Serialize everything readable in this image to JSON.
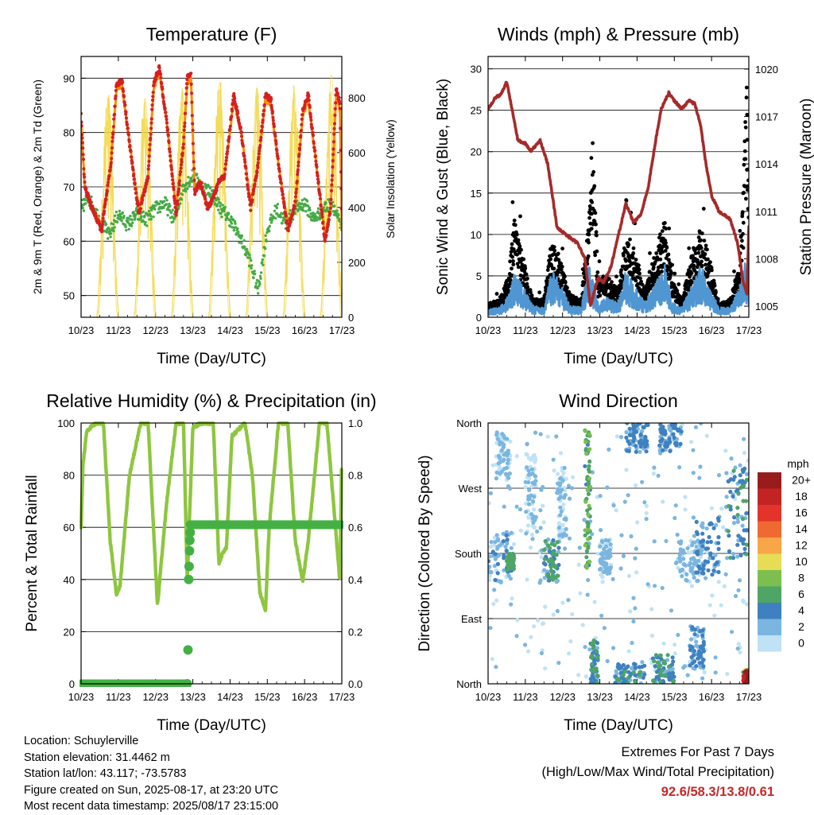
{
  "colors": {
    "temp2m": "#d42020",
    "temp9m": "#ff8c00",
    "dewpoint": "#44aa44",
    "solar": "#f2d740",
    "wind": "#4f96d2",
    "gust": "#000000",
    "pressure": "#a52a2a",
    "rh": "#8ec63f",
    "precip": "#44b044",
    "grid": "#000000"
  },
  "chart_data": [
    {
      "id": "temperature",
      "type": "line",
      "title": "Temperature (F)",
      "xlabel": "Time (Day/UTC)",
      "ylabel": "2m & 9m T (Red, Orange) & 2m Td (Green)",
      "y2label": "Solar Insolation (Yellow)",
      "xticks": [
        "10/23",
        "11/23",
        "12/23",
        "13/23",
        "14/23",
        "15/23",
        "16/23",
        "17/23"
      ],
      "xlim": [
        0,
        7
      ],
      "ylim": [
        46,
        94
      ],
      "yticks": [
        50,
        60,
        70,
        80,
        90
      ],
      "y2lim": [
        0,
        950
      ],
      "y2ticks": [
        0,
        200,
        400,
        600,
        800
      ],
      "grid": true,
      "series": [
        {
          "name": "2m T",
          "axis": "left",
          "x": [
            0,
            0.1,
            0.3,
            0.55,
            0.8,
            0.95,
            1.1,
            1.3,
            1.55,
            1.8,
            1.95,
            2.1,
            2.3,
            2.55,
            2.75,
            2.85,
            2.95,
            3.05,
            3.2,
            3.4,
            3.55,
            3.7,
            3.85,
            4.1,
            4.3,
            4.55,
            4.75,
            4.95,
            5.1,
            5.3,
            5.55,
            5.75,
            5.95,
            6.1,
            6.3,
            6.55,
            6.7,
            6.85,
            6.95,
            7
          ],
          "y": [
            83,
            70,
            66,
            62,
            74,
            89,
            89.5,
            78,
            65,
            72,
            89,
            92,
            82,
            65,
            78,
            90,
            91,
            69,
            71,
            66,
            68,
            71,
            72,
            87,
            80,
            66,
            74,
            87,
            86,
            74,
            62,
            67,
            84,
            87,
            75,
            60,
            66,
            88,
            85,
            62
          ]
        },
        {
          "name": "9m T",
          "axis": "left",
          "x": [
            0,
            0.1,
            0.3,
            0.55,
            0.8,
            0.95,
            1.1,
            1.3,
            1.55,
            1.8,
            1.95,
            2.1,
            2.3,
            2.55,
            2.75,
            2.85,
            2.95,
            3.05,
            3.2,
            3.4,
            3.55,
            3.7,
            3.85,
            4.1,
            4.3,
            4.55,
            4.75,
            4.95,
            5.1,
            5.3,
            5.55,
            5.75,
            5.95,
            6.1,
            6.3,
            6.55,
            6.7,
            6.85,
            6.95,
            7
          ],
          "y": [
            82,
            70,
            66,
            63,
            74,
            88,
            88.5,
            78,
            66,
            72,
            88,
            91,
            82,
            66,
            78,
            89,
            90,
            69,
            71,
            66,
            68,
            71,
            72,
            86,
            80,
            67,
            74,
            86,
            85,
            74,
            63,
            67,
            83,
            86,
            75,
            61,
            66,
            87,
            84,
            62
          ]
        },
        {
          "name": "2m Td",
          "axis": "left",
          "x": [
            0,
            0.2,
            0.5,
            0.75,
            1.0,
            1.25,
            1.5,
            1.75,
            2.0,
            2.25,
            2.5,
            2.75,
            3.0,
            3.25,
            3.5,
            3.75,
            4.0,
            4.25,
            4.5,
            4.75,
            5.0,
            5.25,
            5.5,
            5.75,
            6.0,
            6.25,
            6.5,
            6.75,
            7
          ],
          "y": [
            66,
            68,
            64,
            61,
            65,
            63,
            65,
            64,
            66,
            67,
            64,
            70,
            72,
            70,
            69,
            66,
            64,
            61,
            57,
            51,
            62,
            66,
            63,
            66,
            67,
            64,
            66,
            67,
            62
          ]
        },
        {
          "name": "Solar Insolation",
          "axis": "right",
          "peaks": [
            0.72,
            1.72,
            2.72,
            3.72,
            4.72,
            5.72,
            6.72
          ],
          "peak_values": [
            820,
            840,
            870,
            900,
            880,
            860,
            930
          ]
        }
      ]
    },
    {
      "id": "winds",
      "type": "line",
      "title": "Winds (mph) & Pressure (mb)",
      "xlabel": "Time (Day/UTC)",
      "ylabel": "Sonic Wind & Gust (Blue, Black)",
      "y2label": "Station Pressure (Maroon)",
      "xticks": [
        "10/23",
        "11/23",
        "12/23",
        "13/23",
        "14/23",
        "15/23",
        "16/23",
        "17/23"
      ],
      "xlim": [
        0,
        7
      ],
      "ylim": [
        0,
        31.5
      ],
      "yticks": [
        0,
        5,
        10,
        15,
        20,
        25,
        30
      ],
      "y2lim": [
        1004.3,
        1020.8
      ],
      "y2ticks": [
        1005,
        1008,
        1011,
        1014,
        1017,
        1020
      ],
      "grid": true,
      "series": [
        {
          "name": "Pressure",
          "axis": "right",
          "x": [
            0,
            0.2,
            0.35,
            0.5,
            0.6,
            0.8,
            1.0,
            1.15,
            1.4,
            1.6,
            1.85,
            2.1,
            2.4,
            2.6,
            2.75,
            2.95,
            3.1,
            3.3,
            3.5,
            3.7,
            3.9,
            4.1,
            4.3,
            4.5,
            4.65,
            4.85,
            5.0,
            5.2,
            5.4,
            5.55,
            5.7,
            5.85,
            6.0,
            6.2,
            6.5,
            6.7,
            6.85,
            6.95,
            7
          ],
          "y": [
            1017.5,
            1018.2,
            1018.4,
            1019.2,
            1018,
            1015.5,
            1015.3,
            1014.8,
            1015.5,
            1014,
            1010,
            1009.5,
            1009,
            1008,
            1005,
            1006.8,
            1006.5,
            1007.5,
            1009.5,
            1011.5,
            1010.3,
            1010.8,
            1012.5,
            1015.5,
            1017.5,
            1018.5,
            1018,
            1017.5,
            1018,
            1017.8,
            1016.5,
            1014,
            1012,
            1011,
            1010.5,
            1009,
            1006.5,
            1005.8,
            1010
          ]
        },
        {
          "name": "Sonic Wind",
          "axis": "left",
          "x": [
            0,
            0.3,
            0.55,
            0.7,
            0.9,
            1.2,
            1.5,
            1.7,
            1.9,
            2.2,
            2.5,
            2.7,
            2.95,
            3.2,
            3.5,
            3.7,
            3.95,
            4.2,
            4.5,
            4.75,
            4.95,
            5.2,
            5.5,
            5.7,
            5.95,
            6.2,
            6.5,
            6.75,
            6.9,
            7
          ],
          "y": [
            0.8,
            1.0,
            2.2,
            4.5,
            3.5,
            1.2,
            1.0,
            4.8,
            3.8,
            1.2,
            1.0,
            5.5,
            1.5,
            2.0,
            1.5,
            4.8,
            3.0,
            1.5,
            3.5,
            5.5,
            1.5,
            1.0,
            3.5,
            5.5,
            3.0,
            1.0,
            1.0,
            3.0,
            6.0,
            4.0
          ]
        },
        {
          "name": "Gust",
          "axis": "left",
          "x": [
            0,
            0.3,
            0.55,
            0.7,
            0.9,
            1.2,
            1.5,
            1.7,
            1.9,
            2.2,
            2.5,
            2.7,
            2.8,
            2.95,
            3.2,
            3.5,
            3.7,
            3.95,
            4.2,
            4.5,
            4.75,
            4.95,
            5.2,
            5.5,
            5.7,
            5.95,
            6.2,
            6.5,
            6.75,
            6.85,
            6.95,
            7
          ],
          "y": [
            1.5,
            2.0,
            4.5,
            11.0,
            7.5,
            2.0,
            2.0,
            8.5,
            7.0,
            2.5,
            2.0,
            10.5,
            21.5,
            4.5,
            4.5,
            3.0,
            9.5,
            7.5,
            3.0,
            7.5,
            11.0,
            4.0,
            2.0,
            7.5,
            10.0,
            6.5,
            1.5,
            2.0,
            6.0,
            14.0,
            29.0,
            12.0
          ]
        }
      ]
    },
    {
      "id": "humidity",
      "type": "line",
      "title": "Relative Humidity (%) & Precipitation (in)",
      "xlabel": "Time (Day/UTC)",
      "ylabel": "Percent & Total Rainfall",
      "xticks": [
        "10/23",
        "11/23",
        "12/23",
        "13/23",
        "14/23",
        "15/23",
        "16/23",
        "17/23"
      ],
      "xlim": [
        0,
        7
      ],
      "ylim": [
        0,
        100
      ],
      "yticks": [
        0,
        20,
        40,
        60,
        80,
        100
      ],
      "y2lim": [
        0,
        1.0
      ],
      "y2ticks": [
        0.0,
        0.2,
        0.4,
        0.6,
        0.8,
        1.0
      ],
      "grid": true,
      "series": [
        {
          "name": "RH",
          "axis": "left",
          "x": [
            0,
            0.05,
            0.15,
            0.4,
            0.6,
            0.78,
            0.95,
            1.05,
            1.3,
            1.6,
            1.8,
            1.95,
            2.05,
            2.3,
            2.55,
            2.75,
            2.85,
            3.0,
            3.2,
            3.55,
            3.7,
            3.8,
            3.9,
            4.05,
            4.4,
            4.6,
            4.8,
            4.95,
            5.05,
            5.3,
            5.55,
            5.75,
            5.95,
            6.1,
            6.4,
            6.6,
            6.8,
            6.95,
            7
          ],
          "y": [
            60,
            84,
            97,
            100,
            100,
            55,
            34,
            38,
            80,
            100,
            100,
            58,
            30,
            70,
            100,
            100,
            40,
            98,
            100,
            100,
            46,
            50,
            52,
            95,
            100,
            80,
            35,
            28,
            60,
            100,
            100,
            55,
            39,
            55,
            100,
            100,
            65,
            39,
            90
          ]
        },
        {
          "name": "Precipitation",
          "axis": "right",
          "x": [
            0,
            2.85,
            2.87,
            2.89,
            2.9,
            2.91,
            2.92,
            2.93,
            3.0,
            7
          ],
          "y": [
            0,
            0,
            0.13,
            0.4,
            0.45,
            0.51,
            0.55,
            0.58,
            0.61,
            0.61
          ]
        }
      ]
    },
    {
      "id": "wind_direction",
      "type": "scatter",
      "title": "Wind Direction",
      "xlabel": "Time (Day/UTC)",
      "ylabel": "Direction (Colored By Speed)",
      "xticks": [
        "10/23",
        "11/23",
        "12/23",
        "13/23",
        "14/23",
        "15/23",
        "16/23",
        "17/23"
      ],
      "xlim": [
        0,
        7
      ],
      "ylim": [
        0,
        360
      ],
      "yticks": [
        0,
        90,
        180,
        270,
        360
      ],
      "yticklabels": [
        "North",
        "East",
        "South",
        "West",
        "North"
      ],
      "grid": true,
      "legend": {
        "title": "mph",
        "labels": [
          "20+",
          "18",
          "16",
          "14",
          "12",
          "10",
          "8",
          "6",
          "4",
          "2",
          "0"
        ],
        "colors": [
          "#991c1c",
          "#c42323",
          "#e2342a",
          "#ef6a30",
          "#f7a648",
          "#e6dc55",
          "#7cbf4f",
          "#4ea565",
          "#3f80c0",
          "#7bb6e0",
          "#bfe2f6"
        ],
        "position": "right"
      },
      "clusters": [
        {
          "x": [
            0.0,
            0.7
          ],
          "dir": [
            140,
            210
          ],
          "speed": [
            0,
            4
          ]
        },
        {
          "x": [
            0.2,
            0.6
          ],
          "dir": [
            280,
            350
          ],
          "speed": [
            0,
            2
          ]
        },
        {
          "x": [
            0.5,
            0.7
          ],
          "dir": [
            155,
            180
          ],
          "speed": [
            4,
            6
          ]
        },
        {
          "x": [
            1.0,
            1.3
          ],
          "dir": [
            200,
            320
          ],
          "speed": [
            0,
            2
          ]
        },
        {
          "x": [
            1.5,
            1.9
          ],
          "dir": [
            140,
            200
          ],
          "speed": [
            2,
            6
          ]
        },
        {
          "x": [
            1.85,
            2.1
          ],
          "dir": [
            200,
            300
          ],
          "speed": [
            0,
            2
          ]
        },
        {
          "x": [
            2.6,
            2.75
          ],
          "dir": [
            160,
            350
          ],
          "speed": [
            4,
            8
          ]
        },
        {
          "x": [
            2.75,
            2.95
          ],
          "dir": [
            0,
            60
          ],
          "speed": [
            2,
            6
          ]
        },
        {
          "x": [
            3.0,
            3.3
          ],
          "dir": [
            150,
            200
          ],
          "speed": [
            0,
            3
          ]
        },
        {
          "x": [
            3.4,
            4.2
          ],
          "dir": [
            0,
            30
          ],
          "speed": [
            2,
            6
          ]
        },
        {
          "x": [
            3.7,
            4.3
          ],
          "dir": [
            320,
            360
          ],
          "speed": [
            2,
            5
          ]
        },
        {
          "x": [
            4.4,
            5.0
          ],
          "dir": [
            0,
            40
          ],
          "speed": [
            2,
            6
          ]
        },
        {
          "x": [
            4.6,
            5.2
          ],
          "dir": [
            320,
            360
          ],
          "speed": [
            2,
            5
          ]
        },
        {
          "x": [
            5.0,
            5.8
          ],
          "dir": [
            140,
            200
          ],
          "speed": [
            0,
            3
          ]
        },
        {
          "x": [
            5.4,
            5.8
          ],
          "dir": [
            20,
            80
          ],
          "speed": [
            2,
            4
          ]
        },
        {
          "x": [
            5.5,
            6.2
          ],
          "dir": [
            150,
            230
          ],
          "speed": [
            2,
            5
          ]
        },
        {
          "x": [
            6.4,
            6.95
          ],
          "dir": [
            170,
            300
          ],
          "speed": [
            2,
            6
          ]
        },
        {
          "x": [
            6.85,
            7.0
          ],
          "dir": [
            0,
            20
          ],
          "speed": [
            6,
            20
          ]
        }
      ]
    }
  ],
  "info": {
    "location": "Location: Schuylerville",
    "elevation": "Station elevation: 31.4462 m",
    "latlon": "Station lat/lon: 43.117; -73.5783",
    "created": "Figure created on Sun, 2025-08-17, at 23:20 UTC",
    "recent": "Most recent data timestamp: 2025/08/17 23:15:00"
  },
  "extremes": {
    "title": "Extremes For Past 7 Days",
    "subtitle": "(High/Low/Max Wind/Total Precipitation)",
    "values": "92.6/58.3/13.8/0.61"
  }
}
